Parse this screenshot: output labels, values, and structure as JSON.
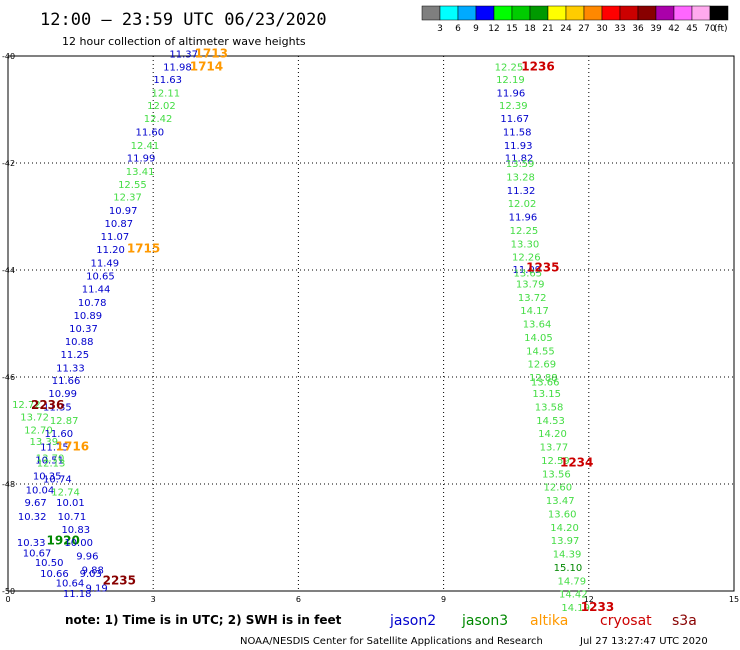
{
  "header": {
    "title": "12:00 – 23:59 UTC 06/23/2020",
    "subtitle": "12 hour collection of altimeter wave heights"
  },
  "colorbar": {
    "labels": [
      "3",
      "6",
      "9",
      "12",
      "15",
      "18",
      "21",
      "24",
      "27",
      "30",
      "33",
      "36",
      "39",
      "42",
      "45",
      "70"
    ],
    "unit": "(ft)",
    "colors": [
      "#7f7f7f",
      "#00ffff",
      "#00aaff",
      "#0000ff",
      "#00ff00",
      "#00cc00",
      "#009900",
      "#ffff00",
      "#ffcc00",
      "#ff8800",
      "#ff0000",
      "#cc0000",
      "#880000",
      "#aa00aa",
      "#ff66ff",
      "#ffaaee",
      "#000000"
    ]
  },
  "footer": {
    "note": "note:  1) Time is in UTC;  2) SWH is in feet",
    "credit": "NOAA/NESDIS Center for Satellite Applications and Research",
    "timestamp": "Jul 27 13:27:47 UTC 2020"
  },
  "satellites": [
    {
      "name": "jason2",
      "color": "#0000cc"
    },
    {
      "name": "jason3",
      "color": "#008800"
    },
    {
      "name": "altika",
      "color": "#ff9900"
    },
    {
      "name": "cryosat",
      "color": "#cc0000"
    },
    {
      "name": "s3a",
      "color": "#880000"
    }
  ],
  "chart_data": {
    "type": "scatter",
    "title": "12:00 – 23:59 UTC 06/23/2020",
    "subtitle": "12 hour collection of altimeter wave heights",
    "unit": "ft",
    "xlim": [
      0,
      15
    ],
    "ylim": [
      -50,
      -40
    ],
    "xticks": [
      0,
      3,
      6,
      9,
      12,
      15
    ],
    "yticks": [
      -40,
      -42,
      -44,
      -46,
      -48,
      -50
    ],
    "grid": true,
    "values": [
      {
        "x": 3.63,
        "y": -39.95,
        "v": "11.37",
        "c": "#0000cc"
      },
      {
        "x": 3.5,
        "y": -40.2,
        "v": "11.98",
        "c": "#0000cc"
      },
      {
        "x": 3.3,
        "y": -40.43,
        "v": "11.63",
        "c": "#0000cc"
      },
      {
        "x": 3.26,
        "y": -40.68,
        "v": "12.11",
        "c": "#44dd44"
      },
      {
        "x": 3.17,
        "y": -40.92,
        "v": "12.02",
        "c": "#44dd44"
      },
      {
        "x": 3.1,
        "y": -41.16,
        "v": "12.42",
        "c": "#44dd44"
      },
      {
        "x": 2.93,
        "y": -41.41,
        "v": "11.60",
        "c": "#0000cc"
      },
      {
        "x": 2.83,
        "y": -41.66,
        "v": "12.41",
        "c": "#44dd44"
      },
      {
        "x": 2.75,
        "y": -41.9,
        "v": "11.99",
        "c": "#0000cc"
      },
      {
        "x": 2.73,
        "y": -42.15,
        "v": "13.41",
        "c": "#44dd44"
      },
      {
        "x": 2.57,
        "y": -42.39,
        "v": "12.55",
        "c": "#44dd44"
      },
      {
        "x": 2.47,
        "y": -42.63,
        "v": "12.37",
        "c": "#44dd44"
      },
      {
        "x": 2.38,
        "y": -42.88,
        "v": "10.97",
        "c": "#0000cc"
      },
      {
        "x": 2.29,
        "y": -43.12,
        "v": "10.87",
        "c": "#0000cc"
      },
      {
        "x": 2.21,
        "y": -43.36,
        "v": "11.07",
        "c": "#0000cc"
      },
      {
        "x": 2.12,
        "y": -43.61,
        "v": "11.20",
        "c": "#0000cc"
      },
      {
        "x": 2.0,
        "y": -43.86,
        "v": "11.49",
        "c": "#0000cc"
      },
      {
        "x": 1.91,
        "y": -44.1,
        "v": "10.65",
        "c": "#0000cc"
      },
      {
        "x": 1.82,
        "y": -44.35,
        "v": "11.44",
        "c": "#0000cc"
      },
      {
        "x": 1.74,
        "y": -44.6,
        "v": "10.78",
        "c": "#0000cc"
      },
      {
        "x": 1.65,
        "y": -44.84,
        "v": "10.89",
        "c": "#0000cc"
      },
      {
        "x": 1.56,
        "y": -45.08,
        "v": "10.37",
        "c": "#0000cc"
      },
      {
        "x": 1.47,
        "y": -45.33,
        "v": "10.88",
        "c": "#0000cc"
      },
      {
        "x": 1.38,
        "y": -45.57,
        "v": "11.25",
        "c": "#0000cc"
      },
      {
        "x": 1.29,
        "y": -45.82,
        "v": "11.33",
        "c": "#0000cc"
      },
      {
        "x": 1.2,
        "y": -46.06,
        "v": "11.66",
        "c": "#0000cc"
      },
      {
        "x": 1.13,
        "y": -46.3,
        "v": "10.99",
        "c": "#0000cc"
      },
      {
        "x": 1.02,
        "y": -46.55,
        "v": "11.35",
        "c": "#0000cc"
      },
      {
        "x": 0.38,
        "y": -46.5,
        "v": "12.72",
        "c": "#44dd44"
      },
      {
        "x": 0.55,
        "y": -46.74,
        "v": "13.72",
        "c": "#44dd44"
      },
      {
        "x": 1.16,
        "y": -46.8,
        "v": "12.87",
        "c": "#44dd44"
      },
      {
        "x": 0.63,
        "y": -46.98,
        "v": "12.70",
        "c": "#44dd44"
      },
      {
        "x": 1.05,
        "y": -47.05,
        "v": "11.60",
        "c": "#0000cc"
      },
      {
        "x": 0.74,
        "y": -47.2,
        "v": "13.39",
        "c": "#44dd44"
      },
      {
        "x": 0.96,
        "y": -47.3,
        "v": "11.75",
        "c": "#0000cc"
      },
      {
        "x": 0.87,
        "y": -47.5,
        "v": "13.70",
        "c": "#44dd44"
      },
      {
        "x": 0.86,
        "y": -47.54,
        "v": "10.51",
        "c": "#0000cc"
      },
      {
        "x": 0.89,
        "y": -47.6,
        "v": "12.13",
        "c": "#44dd44"
      },
      {
        "x": 0.81,
        "y": -47.84,
        "v": "10.35",
        "c": "#0000cc"
      },
      {
        "x": 1.02,
        "y": -47.9,
        "v": "10.74",
        "c": "#0000cc"
      },
      {
        "x": 0.66,
        "y": -48.1,
        "v": "10.04",
        "c": "#0000cc"
      },
      {
        "x": 1.19,
        "y": -48.14,
        "v": "12.74",
        "c": "#44dd44"
      },
      {
        "x": 0.57,
        "y": -48.34,
        "v": "9.67",
        "c": "#0000cc"
      },
      {
        "x": 1.29,
        "y": -48.34,
        "v": "10.01",
        "c": "#0000cc"
      },
      {
        "x": 0.5,
        "y": -48.6,
        "v": "10.32",
        "c": "#0000cc"
      },
      {
        "x": 1.32,
        "y": -48.6,
        "v": "10.71",
        "c": "#0000cc"
      },
      {
        "x": 1.4,
        "y": -48.84,
        "v": "10.83",
        "c": "#0000cc"
      },
      {
        "x": 0.48,
        "y": -49.08,
        "v": "10.33",
        "c": "#0000cc"
      },
      {
        "x": 1.14,
        "y": -49.06,
        "v": "1920",
        "c": "#008800",
        "time": true
      },
      {
        "x": 1.46,
        "y": -49.08,
        "v": "10.00",
        "c": "#0000cc"
      },
      {
        "x": 0.6,
        "y": -49.28,
        "v": "10.67",
        "c": "#0000cc"
      },
      {
        "x": 1.64,
        "y": -49.34,
        "v": "9.96",
        "c": "#0000cc"
      },
      {
        "x": 0.85,
        "y": -49.46,
        "v": "10.50",
        "c": "#0000cc"
      },
      {
        "x": 1.75,
        "y": -49.6,
        "v": "9.88",
        "c": "#0000cc"
      },
      {
        "x": 0.96,
        "y": -49.66,
        "v": "10.66",
        "c": "#0000cc"
      },
      {
        "x": 1.71,
        "y": -49.66,
        "v": "9.03",
        "c": "#0000cc"
      },
      {
        "x": 1.28,
        "y": -49.84,
        "v": "10.64",
        "c": "#0000cc"
      },
      {
        "x": 1.83,
        "y": -49.93,
        "v": "9.19",
        "c": "#0000cc"
      },
      {
        "x": 1.43,
        "y": -50.04,
        "v": "11.18",
        "c": "#0000cc"
      },
      {
        "x": 10.35,
        "y": -40.2,
        "v": "12.25",
        "c": "#44dd44"
      },
      {
        "x": 10.38,
        "y": -40.43,
        "v": "12.19",
        "c": "#44dd44"
      },
      {
        "x": 10.39,
        "y": -40.68,
        "v": "11.96",
        "c": "#0000cc"
      },
      {
        "x": 10.44,
        "y": -40.92,
        "v": "12.39",
        "c": "#44dd44"
      },
      {
        "x": 10.47,
        "y": -41.16,
        "v": "11.67",
        "c": "#0000cc"
      },
      {
        "x": 10.52,
        "y": -41.41,
        "v": "11.58",
        "c": "#0000cc"
      },
      {
        "x": 10.54,
        "y": -41.66,
        "v": "11.93",
        "c": "#0000cc"
      },
      {
        "x": 10.56,
        "y": -41.9,
        "v": "11.82",
        "c": "#0000cc"
      },
      {
        "x": 10.58,
        "y": -42.0,
        "v": "13.59",
        "c": "#44dd44"
      },
      {
        "x": 10.59,
        "y": -42.25,
        "v": "13.28",
        "c": "#44dd44"
      },
      {
        "x": 10.6,
        "y": -42.5,
        "v": "11.32",
        "c": "#0000cc"
      },
      {
        "x": 10.62,
        "y": -42.75,
        "v": "12.02",
        "c": "#44dd44"
      },
      {
        "x": 10.64,
        "y": -43.0,
        "v": "11.96",
        "c": "#0000cc"
      },
      {
        "x": 10.66,
        "y": -43.25,
        "v": "12.25",
        "c": "#44dd44"
      },
      {
        "x": 10.68,
        "y": -43.5,
        "v": "13.30",
        "c": "#44dd44"
      },
      {
        "x": 10.71,
        "y": -43.75,
        "v": "12.26",
        "c": "#44dd44"
      },
      {
        "x": 10.72,
        "y": -43.98,
        "v": "11.09",
        "c": "#0000cc"
      },
      {
        "x": 10.74,
        "y": -44.05,
        "v": "13.65",
        "c": "#44dd44"
      },
      {
        "x": 10.79,
        "y": -44.25,
        "v": "13.79",
        "c": "#44dd44"
      },
      {
        "x": 10.83,
        "y": -44.5,
        "v": "13.72",
        "c": "#44dd44"
      },
      {
        "x": 10.88,
        "y": -44.75,
        "v": "14.17",
        "c": "#44dd44"
      },
      {
        "x": 10.93,
        "y": -45.0,
        "v": "13.64",
        "c": "#44dd44"
      },
      {
        "x": 10.96,
        "y": -45.25,
        "v": "14.05",
        "c": "#44dd44"
      },
      {
        "x": 11.0,
        "y": -45.5,
        "v": "14.55",
        "c": "#44dd44"
      },
      {
        "x": 11.03,
        "y": -45.75,
        "v": "12.69",
        "c": "#44dd44"
      },
      {
        "x": 11.06,
        "y": -46.0,
        "v": "12.88",
        "c": "#44dd44"
      },
      {
        "x": 11.1,
        "y": -46.08,
        "v": "13.66",
        "c": "#44dd44"
      },
      {
        "x": 11.13,
        "y": -46.3,
        "v": "13.15",
        "c": "#44dd44"
      },
      {
        "x": 11.18,
        "y": -46.55,
        "v": "13.58",
        "c": "#44dd44"
      },
      {
        "x": 11.21,
        "y": -46.8,
        "v": "14.53",
        "c": "#44dd44"
      },
      {
        "x": 11.25,
        "y": -47.05,
        "v": "14.20",
        "c": "#44dd44"
      },
      {
        "x": 11.28,
        "y": -47.3,
        "v": "13.77",
        "c": "#44dd44"
      },
      {
        "x": 11.31,
        "y": -47.55,
        "v": "12.59",
        "c": "#44dd44"
      },
      {
        "x": 11.33,
        "y": -47.8,
        "v": "13.56",
        "c": "#44dd44"
      },
      {
        "x": 11.36,
        "y": -48.05,
        "v": "12.60",
        "c": "#44dd44"
      },
      {
        "x": 11.41,
        "y": -48.3,
        "v": "13.47",
        "c": "#44dd44"
      },
      {
        "x": 11.45,
        "y": -48.55,
        "v": "13.60",
        "c": "#44dd44"
      },
      {
        "x": 11.5,
        "y": -48.8,
        "v": "14.20",
        "c": "#44dd44"
      },
      {
        "x": 11.51,
        "y": -49.05,
        "v": "13.97",
        "c": "#44dd44"
      },
      {
        "x": 11.55,
        "y": -49.3,
        "v": "14.39",
        "c": "#44dd44"
      },
      {
        "x": 11.57,
        "y": -49.55,
        "v": "15.10",
        "c": "#008800"
      },
      {
        "x": 11.65,
        "y": -49.8,
        "v": "14.79",
        "c": "#44dd44"
      },
      {
        "x": 11.68,
        "y": -50.05,
        "v": "14.42",
        "c": "#44dd44"
      },
      {
        "x": 11.73,
        "y": -50.3,
        "v": "14.19",
        "c": "#44dd44"
      },
      {
        "x": 4.2,
        "y": -39.95,
        "v": "1713",
        "c": "#ff9900",
        "time": true
      },
      {
        "x": 4.1,
        "y": -40.2,
        "v": "1714",
        "c": "#ff9900",
        "time": true
      },
      {
        "x": 2.8,
        "y": -43.6,
        "v": "1715",
        "c": "#ff9900",
        "time": true
      },
      {
        "x": 1.33,
        "y": -47.3,
        "v": "1716",
        "c": "#ff9900",
        "time": true
      },
      {
        "x": 10.95,
        "y": -40.2,
        "v": "1236",
        "c": "#cc0000",
        "time": true
      },
      {
        "x": 11.05,
        "y": -43.95,
        "v": "1235",
        "c": "#cc0000",
        "time": true
      },
      {
        "x": 11.75,
        "y": -47.6,
        "v": "1234",
        "c": "#cc0000",
        "time": true
      },
      {
        "x": 12.18,
        "y": -50.3,
        "v": "1233",
        "c": "#cc0000",
        "time": true
      },
      {
        "x": 0.82,
        "y": -46.52,
        "v": "2236",
        "c": "#880000",
        "time": true
      },
      {
        "x": 2.3,
        "y": -49.8,
        "v": "2235",
        "c": "#880000",
        "time": true
      }
    ]
  }
}
